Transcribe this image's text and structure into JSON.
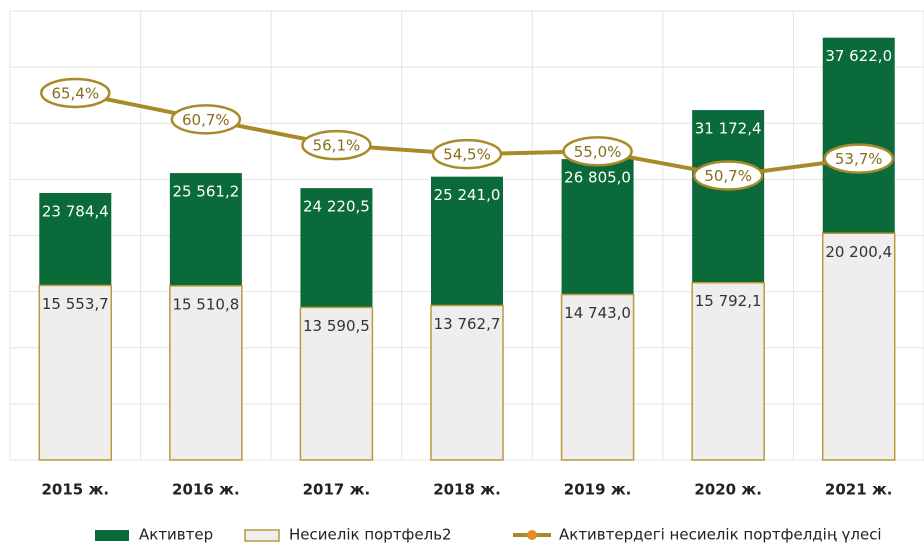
{
  "chart_data": {
    "type": "bar",
    "categories": [
      "2015 ж.",
      "2016 ж.",
      "2017 ж.",
      "2018 ж.",
      "2019 ж.",
      "2020 ж.",
      "2021 ж."
    ],
    "series": [
      {
        "name": "Активтер",
        "color": "#0b6a3a",
        "values": [
          23784.4,
          25561.2,
          24220.5,
          25241.0,
          26805.0,
          31172.4,
          37622.0
        ],
        "value_labels": [
          "23 784,4",
          "25 561,2",
          "24 220,5",
          "25 241,0",
          "26 805,0",
          "31 172,4",
          "37 622,0"
        ]
      },
      {
        "name": "Несиелік портфель2",
        "color": "#efeeec",
        "border_color": "#b99a3c",
        "values": [
          15553.7,
          15510.8,
          13590.5,
          13762.7,
          14743.0,
          15792.1,
          20200.4
        ],
        "value_labels": [
          "15 553,7",
          "15 510,8",
          "13 590,5",
          "13 762,7",
          "14 743,0",
          "15 792,1",
          "20 200,4"
        ]
      },
      {
        "name": "Активтердегі несиелік портфелдің үлесі",
        "type": "line",
        "axis": "y2",
        "color": "#a98a28",
        "marker_color": "#e8892b",
        "values": [
          65.4,
          60.7,
          56.1,
          54.5,
          55.0,
          50.7,
          53.7
        ],
        "value_labels": [
          "65,4%",
          "60,7%",
          "56,1%",
          "54,5%",
          "55,0%",
          "50,7%",
          "53,7%"
        ]
      }
    ],
    "ylim": [
      0,
      40000
    ],
    "yticks": [
      0,
      5000,
      10000,
      15000,
      20000,
      25000,
      30000,
      35000,
      40000
    ],
    "y2lim": [
      0,
      80
    ],
    "grid": true,
    "legend": "bottom"
  }
}
